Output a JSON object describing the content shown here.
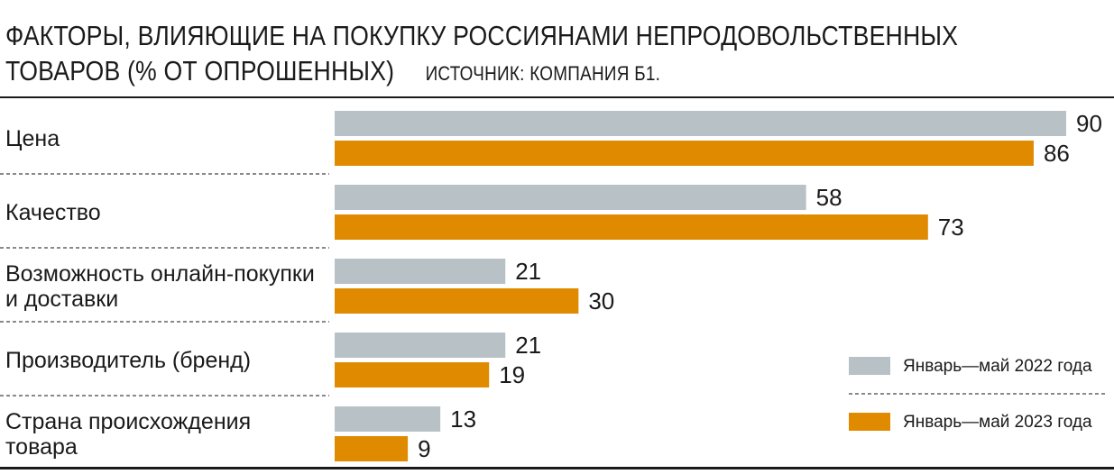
{
  "header": {
    "title_line1": "Факторы, влияющие на покупку россиянами непродовольственных",
    "title_line2": "товаров (% от опрошенных)",
    "source": "Источник: компания Б1."
  },
  "colors": {
    "series_2022": "#b8c1c6",
    "series_2023": "#e08a00",
    "separator": "#444444"
  },
  "chart_data": {
    "type": "bar",
    "orientation": "horizontal",
    "categories": [
      [
        "Цена"
      ],
      [
        "Качество"
      ],
      [
        "Возможность онлайн-покупки",
        "и доставки"
      ],
      [
        "Производитель (бренд)"
      ],
      [
        "Страна происхождения",
        "товара"
      ]
    ],
    "series": [
      {
        "name": "Январь—май 2022 года",
        "values": [
          90,
          58,
          21,
          21,
          13
        ]
      },
      {
        "name": "Январь—май 2023 года",
        "values": [
          86,
          73,
          30,
          19,
          9
        ]
      }
    ],
    "xlim": [
      0,
      90
    ],
    "legend_position": "bottom-right",
    "grid": false
  }
}
